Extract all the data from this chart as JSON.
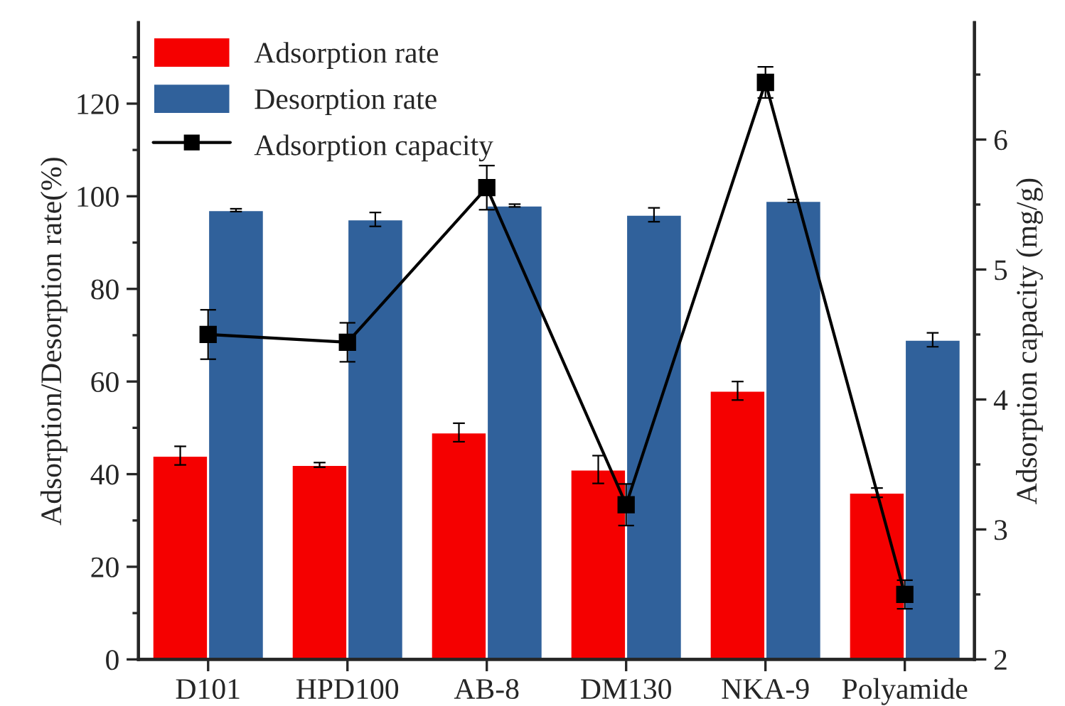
{
  "chart_data": {
    "type": "bar",
    "ylabel": "Adsorption/Desorption rate(%)",
    "y2label": "Adsorption capacity (mg/g)",
    "categories": [
      "D101",
      "HPD100",
      "AB-8",
      "DM130",
      "NKA-9",
      "Polyamide"
    ],
    "series": [
      {
        "name": "Adsorption rate",
        "color": "#f50000",
        "values": [
          44,
          42,
          49,
          41,
          58,
          36
        ],
        "errors": [
          2,
          0.5,
          2,
          3,
          2,
          1
        ]
      },
      {
        "name": "Desorption rate",
        "color": "#30619b",
        "values": [
          97,
          95,
          98,
          96,
          99,
          69
        ],
        "errors": [
          0.3,
          1.5,
          0.3,
          1.5,
          0.3,
          1.5
        ]
      },
      {
        "name": "Adsorption capacity",
        "type": "line",
        "axis": "y2",
        "color": "#000000",
        "marker": "square",
        "line_style": "solid",
        "values": [
          4.5,
          4.44,
          5.63,
          3.19,
          6.44,
          2.5
        ],
        "errors": [
          0.19,
          0.15,
          0.17,
          0.16,
          0.12,
          0.11
        ]
      }
    ],
    "ylim": [
      0,
      137.5
    ],
    "yticks": [
      0,
      {
        "value": 10,
        "label": null
      },
      20,
      {
        "value": 30,
        "label": null
      },
      40,
      {
        "value": 50,
        "label": null
      },
      60,
      {
        "value": 70,
        "label": null
      },
      80,
      {
        "value": 90,
        "label": null
      },
      100,
      {
        "value": 110,
        "label": null
      },
      120,
      {
        "value": 130,
        "label": null
      }
    ],
    "y2lim": [
      2,
      6.9
    ],
    "y2ticks": [
      2,
      {
        "value": 2.5,
        "label": null
      },
      3,
      {
        "value": 3.5,
        "label": null
      },
      4,
      {
        "value": 4.5,
        "label": null
      },
      5,
      {
        "value": 5.5,
        "label": null
      },
      6,
      {
        "value": 6.5,
        "label": null
      }
    ],
    "grid": false,
    "legend": "top left"
  }
}
